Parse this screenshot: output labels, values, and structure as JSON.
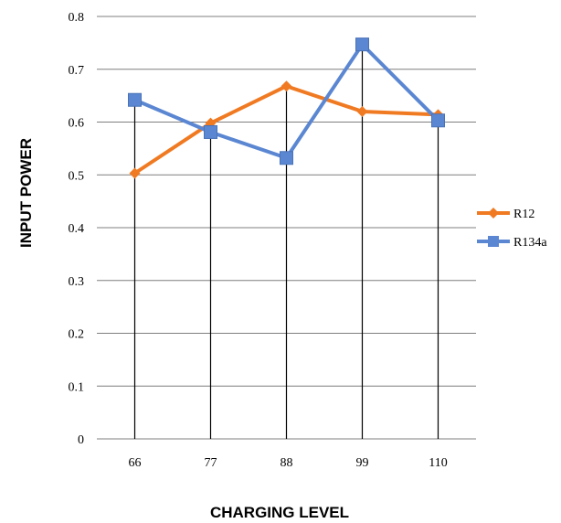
{
  "chart_data": {
    "type": "line",
    "title": "",
    "xlabel": "CHARGING LEVEL",
    "ylabel": "INPUT POWER",
    "categories": [
      "66",
      "77",
      "88",
      "99",
      "110"
    ],
    "ylim": [
      0,
      0.8
    ],
    "yticks": [
      "0",
      "0.1",
      "0.2",
      "0.3",
      "0.4",
      "0.5",
      "0.6",
      "0.7",
      "0.8"
    ],
    "grid": true,
    "legend_position": "right",
    "series": [
      {
        "name": "R12",
        "color": "#f07a22",
        "marker": "diamond",
        "values": [
          0.503,
          0.598,
          0.668,
          0.62,
          0.614
        ]
      },
      {
        "name": "R134a",
        "color": "#5b87d2",
        "marker": "square",
        "values": [
          0.642,
          0.581,
          0.532,
          0.747,
          0.603
        ]
      }
    ]
  }
}
